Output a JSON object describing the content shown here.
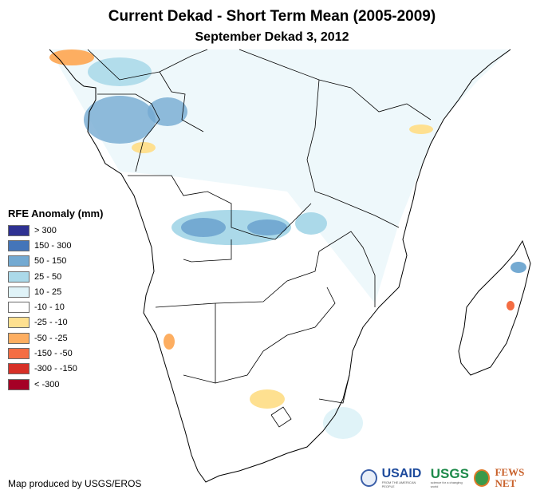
{
  "title": "Current Dekad - Short Term Mean (2005-2009)",
  "subtitle": "September Dekad 3, 2012",
  "legend": {
    "title": "RFE Anomaly (mm)",
    "items": [
      {
        "label": "> 300",
        "color": "#2e3192"
      },
      {
        "label": "150 - 300",
        "color": "#4475b9"
      },
      {
        "label": "50 - 150",
        "color": "#74aad2"
      },
      {
        "label": "25 - 50",
        "color": "#abd9e9"
      },
      {
        "label": "10 - 25",
        "color": "#e0f3f8"
      },
      {
        "label": "-10 - 10",
        "color": "#ffffff"
      },
      {
        "label": "-25 - -10",
        "color": "#fee090"
      },
      {
        "label": "-50 - -25",
        "color": "#fdae61"
      },
      {
        "label": "-150 - -50",
        "color": "#f46d43"
      },
      {
        "label": "-300 - -150",
        "color": "#d73027"
      },
      {
        "label": "< -300",
        "color": "#a50026"
      }
    ]
  },
  "credit": "Map produced by USGS/EROS",
  "logos": {
    "usaid": "USAID",
    "usaid_tagline": "FROM THE AMERICAN PEOPLE",
    "usgs": "USGS",
    "usgs_tagline": "science for a changing world",
    "fewsnet": "FEWS NET"
  }
}
